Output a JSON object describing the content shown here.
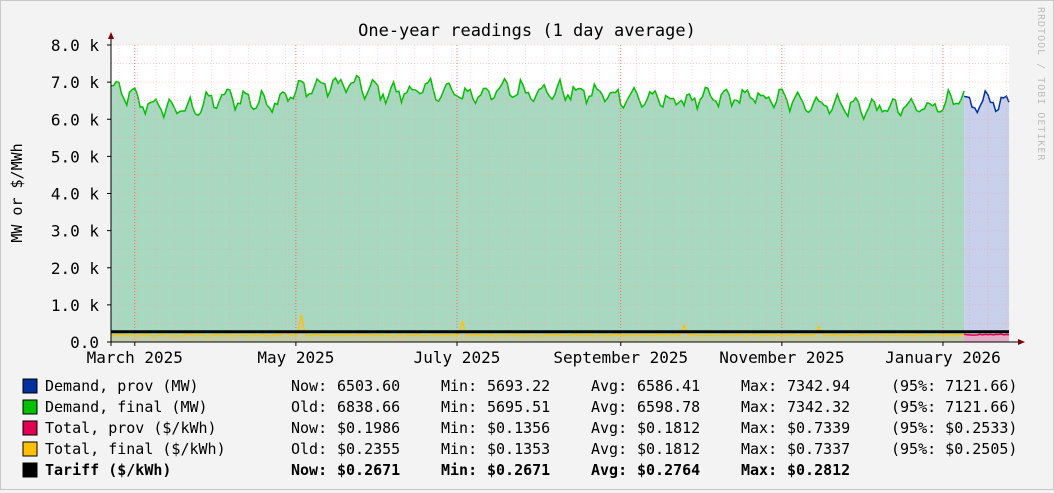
{
  "vendor_text": "RRDTOOL / TOBI OETIKER",
  "chart_data": {
    "type": "area",
    "title": "One-year readings (1 day average)",
    "ylabel": "MW or $/MWh",
    "xlabel": "",
    "ylim": [
      0,
      8000
    ],
    "xlim": [
      "2025-02-20",
      "2026-01-26"
    ],
    "y_ticks": [
      {
        "value": 0,
        "label": "0.0"
      },
      {
        "value": 1000,
        "label": "1.0 k"
      },
      {
        "value": 2000,
        "label": "2.0 k"
      },
      {
        "value": 3000,
        "label": "3.0 k"
      },
      {
        "value": 4000,
        "label": "4.0 k"
      },
      {
        "value": 5000,
        "label": "5.0 k"
      },
      {
        "value": 6000,
        "label": "6.0 k"
      },
      {
        "value": 7000,
        "label": "7.0 k"
      },
      {
        "value": 8000,
        "label": "8.0 k"
      }
    ],
    "x_ticks": [
      {
        "date": "2025-03-01",
        "label": "March 2025"
      },
      {
        "date": "2025-05-01",
        "label": "May 2025"
      },
      {
        "date": "2025-07-01",
        "label": "July 2025"
      },
      {
        "date": "2025-09-01",
        "label": "September 2025"
      },
      {
        "date": "2025-11-01",
        "label": "November 2025"
      },
      {
        "date": "2026-01-01",
        "label": "January 2026"
      }
    ],
    "grid": true,
    "background_color": "#ffffff",
    "grid_color": "#ff9b9b",
    "series": [
      {
        "name": "Demand, final (MW)",
        "color": "#00c000",
        "fill": "#a8d8c0",
        "x_range": [
          "2025-02-20",
          "2026-01-09"
        ],
        "x": [
          "2025-02-20",
          "2025-03-05",
          "2025-03-20",
          "2025-04-05",
          "2025-04-20",
          "2025-05-05",
          "2025-05-20",
          "2025-06-05",
          "2025-06-20",
          "2025-07-05",
          "2025-07-20",
          "2025-08-05",
          "2025-08-20",
          "2025-09-05",
          "2025-09-20",
          "2025-10-05",
          "2025-10-20",
          "2025-11-05",
          "2025-11-20",
          "2025-12-05",
          "2025-12-20",
          "2026-01-09"
        ],
        "values": [
          6850,
          6400,
          6250,
          6600,
          6450,
          6850,
          6950,
          6700,
          6800,
          6650,
          6800,
          6750,
          6700,
          6600,
          6500,
          6550,
          6600,
          6500,
          6400,
          6300,
          6300,
          6500
        ]
      },
      {
        "name": "Demand, prov (MW)",
        "color": "#0030a0",
        "fill": "#c8d0ec",
        "x_range": [
          "2026-01-09",
          "2026-01-26"
        ],
        "x": [
          "2026-01-09",
          "2026-01-13",
          "2026-01-17",
          "2026-01-21",
          "2026-01-26"
        ],
        "values": [
          6500,
          6300,
          6550,
          6450,
          6500
        ]
      },
      {
        "name": "Total, final ($/kWh)",
        "color": "#ffc000",
        "x_range": [
          "2025-02-20",
          "2026-01-09"
        ],
        "baseline": 181.2,
        "spikes": [
          {
            "date": "2025-03-21",
            "value": 210
          },
          {
            "date": "2025-04-27",
            "value": 290
          },
          {
            "date": "2025-05-03",
            "value": 734
          },
          {
            "date": "2025-07-03",
            "value": 560
          },
          {
            "date": "2025-09-25",
            "value": 460
          },
          {
            "date": "2025-11-15",
            "value": 420
          }
        ]
      },
      {
        "name": "Total, prov ($/kWh)",
        "color": "#e0004f",
        "x_range": [
          "2026-01-09",
          "2026-01-26"
        ],
        "baseline": 198.6
      },
      {
        "name": "Tariff ($/kWh)",
        "color": "#000000",
        "x_range": [
          "2025-02-20",
          "2026-01-26"
        ],
        "value": 276.4
      }
    ],
    "legend": {
      "placement": "bottom",
      "entries": [
        {
          "swatch": "#0030a0",
          "name": "Demand, prov (MW)",
          "cur_label": "Now:",
          "cur": "6503.60",
          "min": "5693.22",
          "avg": "6586.41",
          "max": "7342.94",
          "p95": "(95%: 7121.66)",
          "bold": false
        },
        {
          "swatch": "#00c000",
          "name": "Demand, final (MW)",
          "cur_label": "Old:",
          "cur": "6838.66",
          "min": "5695.51",
          "avg": "6598.78",
          "max": "7342.32",
          "p95": "(95%: 7121.66)",
          "bold": false
        },
        {
          "swatch": "#e0004f",
          "name": "Total, prov ($/kWh)",
          "cur_label": "Now:",
          "cur": "$0.1986",
          "min": "$0.1356",
          "avg": "$0.1812",
          "max": "$0.7339",
          "p95": "(95%: $0.2533)",
          "bold": false
        },
        {
          "swatch": "#ffc000",
          "name": "Total, final ($/kWh)",
          "cur_label": "Old:",
          "cur": "$0.2355",
          "min": "$0.1353",
          "avg": "$0.1812",
          "max": "$0.7337",
          "p95": "(95%: $0.2505)",
          "bold": false
        },
        {
          "swatch": "#000000",
          "name": "Tariff ($/kWh)",
          "cur_label": "Now:",
          "cur": "$0.2671",
          "min": "$0.2671",
          "avg": "$0.2764",
          "max": "$0.2812",
          "p95": "",
          "bold": true
        }
      ],
      "min_label": "Min:",
      "avg_label": "Avg:",
      "max_label": "Max:"
    }
  }
}
